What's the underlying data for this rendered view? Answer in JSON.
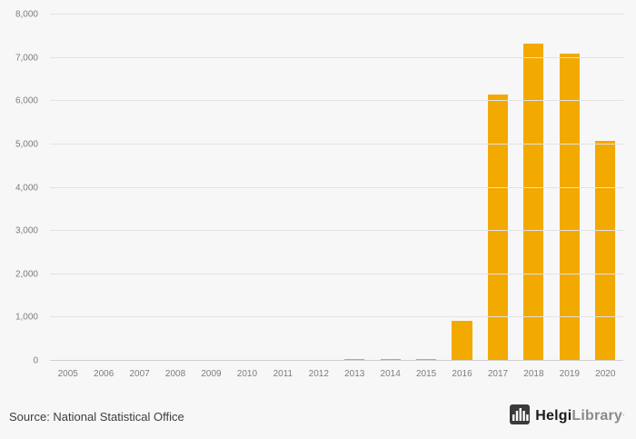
{
  "chart_data": {
    "type": "bar",
    "categories": [
      "2005",
      "2006",
      "2007",
      "2008",
      "2009",
      "2010",
      "2011",
      "2012",
      "2013",
      "2014",
      "2015",
      "2016",
      "2017",
      "2018",
      "2019",
      "2020"
    ],
    "values": [
      0,
      0,
      0,
      0,
      0,
      0,
      0,
      0,
      40,
      40,
      40,
      930,
      6150,
      7330,
      7100,
      5080
    ],
    "title": "",
    "xlabel": "",
    "ylabel": "",
    "ylim": [
      0,
      8000
    ],
    "yticks": [
      0,
      1000,
      2000,
      3000,
      4000,
      5000,
      6000,
      7000,
      8000
    ],
    "bar_color": "#F2A900",
    "grid": true,
    "legend": false
  },
  "footer": {
    "source": "Source: National Statistical Office",
    "logo": {
      "icon": "bar-chart-logo-icon",
      "brand_primary": "Helgi",
      "brand_secondary": "Library",
      "suffix": "."
    }
  },
  "colors": {
    "background": "#f7f7f7",
    "gridline": "#e2e2e2",
    "axis_text": "#7d7d7d",
    "bar": "#F2A900",
    "source_text": "#3d3d3d",
    "logo_dark": "#3a3a3a"
  }
}
